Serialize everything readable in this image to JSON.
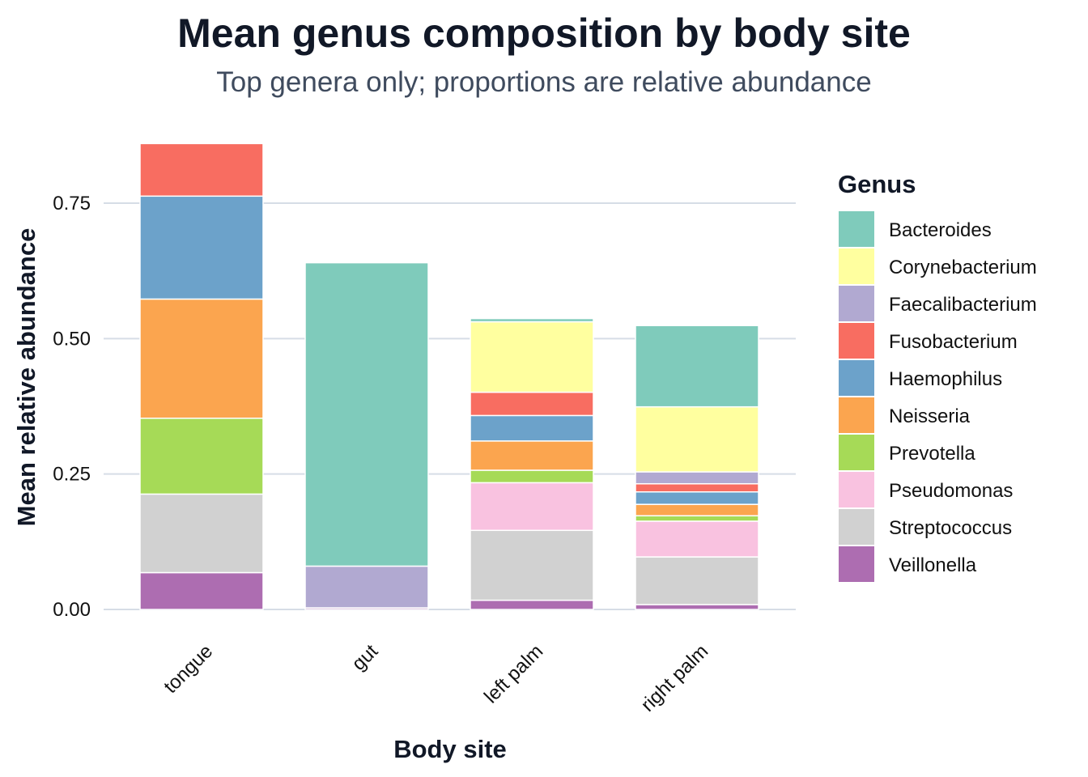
{
  "chart_data": {
    "type": "bar",
    "stacked": true,
    "title": "Mean genus composition by body site",
    "subtitle": "Top genera only; proportions are relative abundance",
    "xlabel": "Body site",
    "ylabel": "Mean relative abundance",
    "ylim": [
      0,
      0.86
    ],
    "yticks": [
      0,
      0.25,
      0.5,
      0.75
    ],
    "ytick_labels": [
      "0.00",
      "0.25",
      "0.50",
      "0.75"
    ],
    "grid": "horizontal",
    "legend": {
      "title": "Genus",
      "placement": "right"
    },
    "categories": [
      "tongue",
      "gut",
      "left palm",
      "right palm"
    ],
    "series": [
      {
        "name": "Bacteroides",
        "color": "#7fcbbb",
        "values": [
          0.0,
          0.56,
          0.006,
          0.15
        ]
      },
      {
        "name": "Corynebacterium",
        "color": "#ffff9f",
        "values": [
          0.0,
          0.0,
          0.13,
          0.12
        ]
      },
      {
        "name": "Faecalibacterium",
        "color": "#b1a9d1",
        "values": [
          0.0,
          0.077,
          0.0,
          0.022
        ]
      },
      {
        "name": "Fusobacterium",
        "color": "#f86d61",
        "values": [
          0.097,
          0.0,
          0.043,
          0.015
        ]
      },
      {
        "name": "Haemophilus",
        "color": "#6ca2ca",
        "values": [
          0.19,
          0.0,
          0.047,
          0.023
        ]
      },
      {
        "name": "Neisseria",
        "color": "#fba54f",
        "values": [
          0.22,
          0.0,
          0.054,
          0.021
        ]
      },
      {
        "name": "Prevotella",
        "color": "#a6da57",
        "values": [
          0.14,
          0.0,
          0.023,
          0.01
        ]
      },
      {
        "name": "Pseudomonas",
        "color": "#f9c2e0",
        "values": [
          0.0,
          0.0,
          0.088,
          0.066
        ]
      },
      {
        "name": "Streptococcus",
        "color": "#d1d1d1",
        "values": [
          0.145,
          0.0,
          0.129,
          0.088
        ]
      },
      {
        "name": "Veillonella",
        "color": "#ad6db1",
        "values": [
          0.068,
          0.003,
          0.017,
          0.009
        ]
      }
    ]
  }
}
